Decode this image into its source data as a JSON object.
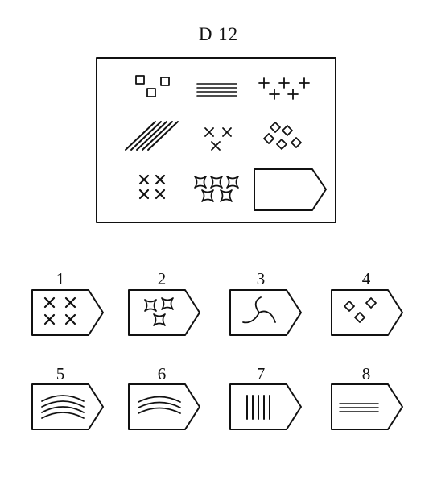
{
  "title": "D 12",
  "matrix": {
    "cells": [
      {
        "row": 1,
        "col": 1,
        "figure": "three-squares"
      },
      {
        "row": 1,
        "col": 2,
        "figure": "four-horizontal-lines"
      },
      {
        "row": 1,
        "col": 3,
        "figure": "five-plus-signs"
      },
      {
        "row": 2,
        "col": 1,
        "figure": "five-diagonal-lines"
      },
      {
        "row": 2,
        "col": 2,
        "figure": "three-crosses"
      },
      {
        "row": 2,
        "col": 3,
        "figure": "four-diamonds"
      },
      {
        "row": 3,
        "col": 1,
        "figure": "four-crosses"
      },
      {
        "row": 3,
        "col": 2,
        "figure": "five-concave-stars"
      },
      {
        "row": 3,
        "col": 3,
        "figure": "empty-answer-slot"
      }
    ]
  },
  "options": [
    {
      "number": "1",
      "figure": "four-crosses"
    },
    {
      "number": "2",
      "figure": "three-concave-stars"
    },
    {
      "number": "3",
      "figure": "three-curved-arms"
    },
    {
      "number": "4",
      "figure": "three-diamonds"
    },
    {
      "number": "5",
      "figure": "four-arcs"
    },
    {
      "number": "6",
      "figure": "three-arcs"
    },
    {
      "number": "7",
      "figure": "five-vertical-lines"
    },
    {
      "number": "8",
      "figure": "three-horizontal-lines"
    }
  ]
}
